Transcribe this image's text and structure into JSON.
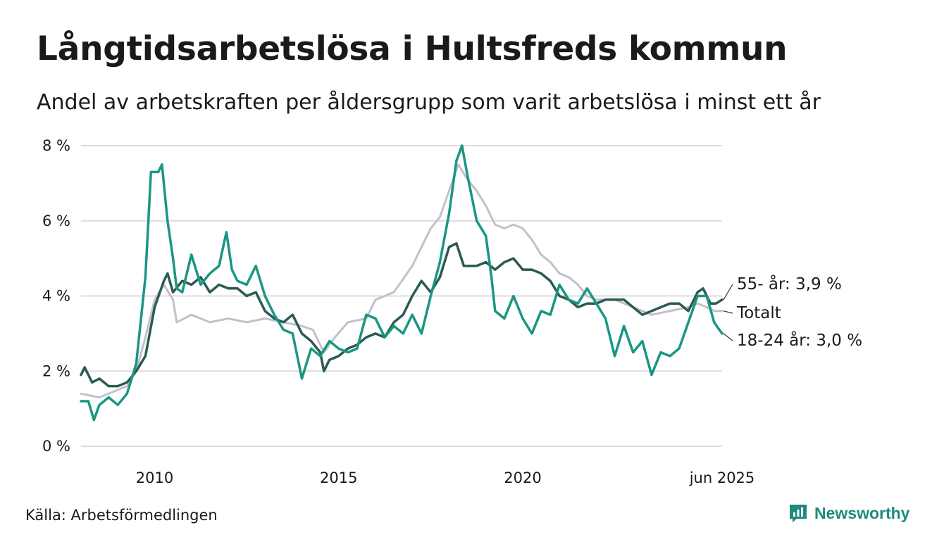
{
  "header": {
    "title": "Långtidsarbetslösa i Hultsfreds kommun",
    "subtitle": "Andel av arbetskraften per åldersgrupp som varit arbetslösa i minst ett år"
  },
  "footer": {
    "source": "Källa: Arbetsförmedlingen",
    "brand": "Newsworthy"
  },
  "colors": {
    "totalt": "#c3c0cc",
    "age55": "#2b5a52",
    "age1824": "#1a9683",
    "grid": "#dcdce2",
    "brand": "#1e8a7e"
  },
  "chart_data": {
    "type": "line",
    "title": "Långtidsarbetslösa i Hultsfreds kommun",
    "subtitle": "Andel av arbetskraften per åldersgrupp som varit arbetslösa i minst ett år",
    "x_range": [
      2008.0,
      2025.4167
    ],
    "ylim": [
      0,
      8
    ],
    "y_ticks": [
      0,
      2,
      4,
      6,
      8
    ],
    "y_tick_labels": [
      "0 %",
      "2 %",
      "4 %",
      "6 %",
      "8 %"
    ],
    "x_ticks": [
      2010,
      2015,
      2020,
      2025.4167
    ],
    "x_tick_labels": [
      "2010",
      "2015",
      "2020",
      "jun 2025"
    ],
    "grid": "horizontal",
    "end_labels": [
      "55- år: 3,9 %",
      "Totalt",
      "18-24 år: 3,0 %"
    ],
    "series": [
      {
        "name": "Totalt",
        "key": "totalt",
        "points": [
          [
            2008.0,
            1.4
          ],
          [
            2008.5,
            1.3
          ],
          [
            2009.0,
            1.5
          ],
          [
            2009.25,
            1.6
          ],
          [
            2009.5,
            2.0
          ],
          [
            2009.75,
            2.9
          ],
          [
            2010.0,
            3.9
          ],
          [
            2010.25,
            4.3
          ],
          [
            2010.5,
            3.9
          ],
          [
            2010.6,
            3.3
          ],
          [
            2011.0,
            3.5
          ],
          [
            2011.5,
            3.3
          ],
          [
            2012.0,
            3.4
          ],
          [
            2012.5,
            3.3
          ],
          [
            2013.0,
            3.4
          ],
          [
            2013.5,
            3.3
          ],
          [
            2014.0,
            3.2
          ],
          [
            2014.3,
            3.1
          ],
          [
            2014.6,
            2.5
          ],
          [
            2014.9,
            2.9
          ],
          [
            2015.25,
            3.3
          ],
          [
            2015.75,
            3.4
          ],
          [
            2016.0,
            3.9
          ],
          [
            2016.5,
            4.1
          ],
          [
            2017.0,
            4.8
          ],
          [
            2017.5,
            5.8
          ],
          [
            2017.75,
            6.1
          ],
          [
            2018.0,
            6.8
          ],
          [
            2018.25,
            7.5
          ],
          [
            2018.5,
            7.1
          ],
          [
            2018.75,
            6.8
          ],
          [
            2019.0,
            6.4
          ],
          [
            2019.25,
            5.9
          ],
          [
            2019.5,
            5.8
          ],
          [
            2019.75,
            5.9
          ],
          [
            2020.0,
            5.8
          ],
          [
            2020.25,
            5.5
          ],
          [
            2020.5,
            5.1
          ],
          [
            2020.75,
            4.9
          ],
          [
            2021.0,
            4.6
          ],
          [
            2021.25,
            4.5
          ],
          [
            2021.5,
            4.3
          ],
          [
            2021.75,
            4.0
          ],
          [
            2022.0,
            3.9
          ],
          [
            2022.5,
            3.9
          ],
          [
            2023.0,
            3.7
          ],
          [
            2023.5,
            3.5
          ],
          [
            2024.0,
            3.6
          ],
          [
            2024.5,
            3.7
          ],
          [
            2024.75,
            3.8
          ],
          [
            2025.0,
            3.7
          ],
          [
            2025.2,
            3.6
          ],
          [
            2025.4167,
            3.6
          ]
        ]
      },
      {
        "name": "55- år",
        "key": "age55",
        "points": [
          [
            2008.0,
            1.9
          ],
          [
            2008.1,
            2.1
          ],
          [
            2008.3,
            1.7
          ],
          [
            2008.5,
            1.8
          ],
          [
            2008.75,
            1.6
          ],
          [
            2009.0,
            1.6
          ],
          [
            2009.25,
            1.7
          ],
          [
            2009.5,
            2.0
          ],
          [
            2009.75,
            2.4
          ],
          [
            2010.0,
            3.7
          ],
          [
            2010.25,
            4.4
          ],
          [
            2010.35,
            4.6
          ],
          [
            2010.5,
            4.1
          ],
          [
            2010.75,
            4.4
          ],
          [
            2011.0,
            4.3
          ],
          [
            2011.25,
            4.5
          ],
          [
            2011.5,
            4.1
          ],
          [
            2011.75,
            4.3
          ],
          [
            2012.0,
            4.2
          ],
          [
            2012.25,
            4.2
          ],
          [
            2012.5,
            4.0
          ],
          [
            2012.75,
            4.1
          ],
          [
            2013.0,
            3.6
          ],
          [
            2013.25,
            3.4
          ],
          [
            2013.5,
            3.3
          ],
          [
            2013.75,
            3.5
          ],
          [
            2014.0,
            3.0
          ],
          [
            2014.25,
            2.8
          ],
          [
            2014.5,
            2.5
          ],
          [
            2014.6,
            2.0
          ],
          [
            2014.75,
            2.3
          ],
          [
            2015.0,
            2.4
          ],
          [
            2015.25,
            2.6
          ],
          [
            2015.5,
            2.7
          ],
          [
            2015.75,
            2.9
          ],
          [
            2016.0,
            3.0
          ],
          [
            2016.25,
            2.9
          ],
          [
            2016.5,
            3.3
          ],
          [
            2016.75,
            3.5
          ],
          [
            2017.0,
            4.0
          ],
          [
            2017.25,
            4.4
          ],
          [
            2017.5,
            4.1
          ],
          [
            2017.75,
            4.5
          ],
          [
            2018.0,
            5.3
          ],
          [
            2018.2,
            5.4
          ],
          [
            2018.4,
            4.8
          ],
          [
            2018.75,
            4.8
          ],
          [
            2019.0,
            4.9
          ],
          [
            2019.25,
            4.7
          ],
          [
            2019.5,
            4.9
          ],
          [
            2019.75,
            5.0
          ],
          [
            2020.0,
            4.7
          ],
          [
            2020.25,
            4.7
          ],
          [
            2020.5,
            4.6
          ],
          [
            2020.75,
            4.4
          ],
          [
            2021.0,
            4.0
          ],
          [
            2021.25,
            3.9
          ],
          [
            2021.5,
            3.7
          ],
          [
            2021.75,
            3.8
          ],
          [
            2022.0,
            3.8
          ],
          [
            2022.25,
            3.9
          ],
          [
            2022.5,
            3.9
          ],
          [
            2022.75,
            3.9
          ],
          [
            2023.0,
            3.7
          ],
          [
            2023.25,
            3.5
          ],
          [
            2023.5,
            3.6
          ],
          [
            2023.75,
            3.7
          ],
          [
            2024.0,
            3.8
          ],
          [
            2024.25,
            3.8
          ],
          [
            2024.5,
            3.6
          ],
          [
            2024.75,
            4.1
          ],
          [
            2024.9,
            4.2
          ],
          [
            2025.1,
            3.8
          ],
          [
            2025.25,
            3.8
          ],
          [
            2025.4167,
            3.9
          ]
        ]
      },
      {
        "name": "18-24 år",
        "key": "age1824",
        "points": [
          [
            2008.0,
            1.2
          ],
          [
            2008.2,
            1.2
          ],
          [
            2008.35,
            0.7
          ],
          [
            2008.5,
            1.1
          ],
          [
            2008.75,
            1.3
          ],
          [
            2009.0,
            1.1
          ],
          [
            2009.25,
            1.4
          ],
          [
            2009.5,
            2.2
          ],
          [
            2009.75,
            4.5
          ],
          [
            2009.9,
            7.3
          ],
          [
            2010.1,
            7.3
          ],
          [
            2010.2,
            7.5
          ],
          [
            2010.35,
            6.0
          ],
          [
            2010.5,
            5.0
          ],
          [
            2010.6,
            4.2
          ],
          [
            2010.75,
            4.1
          ],
          [
            2011.0,
            5.1
          ],
          [
            2011.25,
            4.3
          ],
          [
            2011.5,
            4.6
          ],
          [
            2011.75,
            4.8
          ],
          [
            2011.95,
            5.7
          ],
          [
            2012.1,
            4.7
          ],
          [
            2012.25,
            4.4
          ],
          [
            2012.5,
            4.3
          ],
          [
            2012.75,
            4.8
          ],
          [
            2013.0,
            4.0
          ],
          [
            2013.25,
            3.5
          ],
          [
            2013.5,
            3.1
          ],
          [
            2013.75,
            3.0
          ],
          [
            2014.0,
            1.8
          ],
          [
            2014.25,
            2.6
          ],
          [
            2014.5,
            2.4
          ],
          [
            2014.75,
            2.8
          ],
          [
            2015.0,
            2.6
          ],
          [
            2015.25,
            2.5
          ],
          [
            2015.5,
            2.6
          ],
          [
            2015.75,
            3.5
          ],
          [
            2016.0,
            3.4
          ],
          [
            2016.25,
            2.9
          ],
          [
            2016.5,
            3.2
          ],
          [
            2016.75,
            3.0
          ],
          [
            2017.0,
            3.5
          ],
          [
            2017.25,
            3.0
          ],
          [
            2017.5,
            4.0
          ],
          [
            2017.75,
            4.9
          ],
          [
            2018.0,
            6.2
          ],
          [
            2018.2,
            7.6
          ],
          [
            2018.35,
            8.0
          ],
          [
            2018.5,
            7.2
          ],
          [
            2018.75,
            6.0
          ],
          [
            2019.0,
            5.6
          ],
          [
            2019.15,
            4.5
          ],
          [
            2019.25,
            3.6
          ],
          [
            2019.5,
            3.4
          ],
          [
            2019.75,
            4.0
          ],
          [
            2020.0,
            3.4
          ],
          [
            2020.25,
            3.0
          ],
          [
            2020.5,
            3.6
          ],
          [
            2020.75,
            3.5
          ],
          [
            2021.0,
            4.3
          ],
          [
            2021.25,
            3.9
          ],
          [
            2021.5,
            3.8
          ],
          [
            2021.75,
            4.2
          ],
          [
            2022.0,
            3.8
          ],
          [
            2022.25,
            3.4
          ],
          [
            2022.5,
            2.4
          ],
          [
            2022.75,
            3.2
          ],
          [
            2023.0,
            2.5
          ],
          [
            2023.25,
            2.8
          ],
          [
            2023.5,
            1.9
          ],
          [
            2023.75,
            2.5
          ],
          [
            2024.0,
            2.4
          ],
          [
            2024.25,
            2.6
          ],
          [
            2024.5,
            3.3
          ],
          [
            2024.75,
            4.0
          ],
          [
            2025.0,
            4.0
          ],
          [
            2025.2,
            3.3
          ],
          [
            2025.4167,
            3.0
          ]
        ]
      }
    ]
  }
}
